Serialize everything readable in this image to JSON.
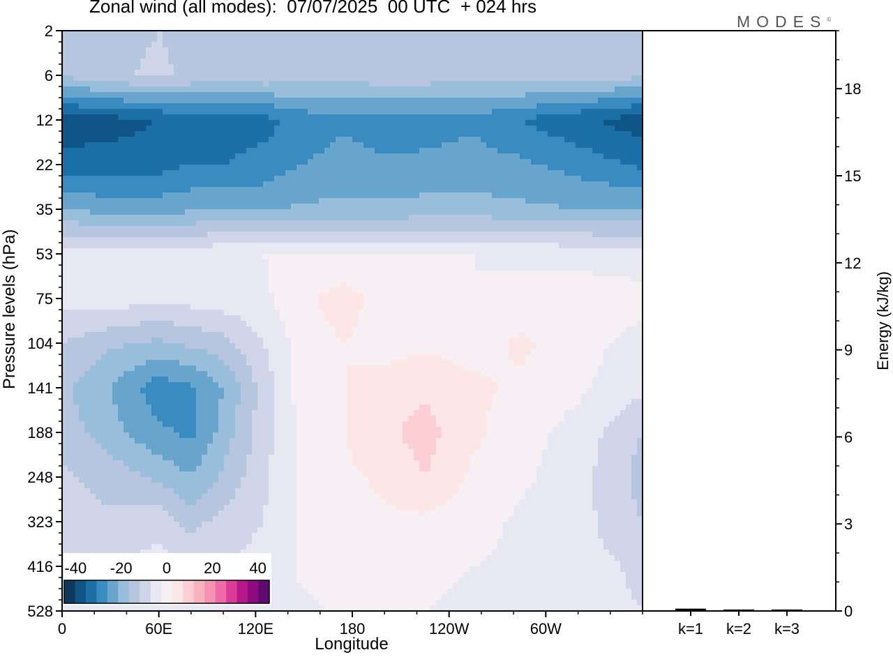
{
  "title": "Zonal wind (all modes):  07/07/2025  00 UTC  + 024 hrs",
  "logo": {
    "text": "MODES",
    "mark": "©"
  },
  "chart_data": [
    {
      "type": "heatmap",
      "title": "Zonal wind (all modes):  07/07/2025  00 UTC  + 024 hrs",
      "xlabel": "Longitude",
      "ylabel": "Pressure levels (hPa)",
      "x_ticks": [
        "0",
        "60E",
        "120E",
        "180",
        "120W",
        "60W"
      ],
      "x_tick_values": [
        0,
        60,
        120,
        180,
        240,
        300
      ],
      "xlim": [
        0,
        360
      ],
      "y_ticks": [
        "2",
        "6",
        "12",
        "22",
        "35",
        "53",
        "75",
        "104",
        "141",
        "188",
        "248",
        "323",
        "416",
        "528"
      ],
      "y_levels": [
        2,
        6,
        12,
        22,
        35,
        53,
        75,
        104,
        141,
        188,
        248,
        323,
        416,
        528
      ],
      "colorbar": {
        "labels": [
          "-40",
          "-20",
          "0",
          "20",
          "40"
        ],
        "label_values": [
          -40,
          -20,
          0,
          20,
          40
        ],
        "range": [
          -45,
          45
        ],
        "step": 5,
        "colors": [
          "#0d3a5c",
          "#0e5586",
          "#1a6fa6",
          "#3a8bbf",
          "#67a5cd",
          "#98bedb",
          "#b7c6df",
          "#d1d5e9",
          "#e8e8f2",
          "#f6f0f4",
          "#fde6e6",
          "#fbcfd3",
          "#f8b4be",
          "#f493b4",
          "#ee6aa8",
          "#dc3a98",
          "#b6178a",
          "#8c0b7e",
          "#5e0a72"
        ]
      },
      "values_ms": {
        "lon": [
          0,
          30,
          60,
          80,
          100,
          125,
          150,
          175,
          200,
          225,
          255,
          285,
          320,
          360
        ],
        "rows": [
          [
            -15,
            -12,
            -10,
            -12,
            -13,
            -12,
            -14,
            -15,
            -12,
            -13,
            -15,
            -13,
            -12,
            -15
          ],
          [
            -14,
            -11,
            -9,
            -11,
            -12,
            -11,
            -13,
            -14,
            -11,
            -12,
            -14,
            -12,
            -11,
            -14
          ],
          [
            -38,
            -37,
            -35,
            -33,
            -33,
            -32,
            -28,
            -26,
            -28,
            -27,
            -26,
            -30,
            -34,
            -38
          ],
          [
            -33,
            -33,
            -32,
            -30,
            -30,
            -28,
            -25,
            -23,
            -24,
            -24,
            -23,
            -24,
            -27,
            -31
          ],
          [
            -20,
            -22,
            -22,
            -21,
            -21,
            -21,
            -19,
            -19,
            -19,
            -18,
            -18,
            -19,
            -20,
            -20
          ],
          [
            -3,
            -2,
            -2,
            -2,
            -1,
            0,
            1,
            1,
            0,
            0,
            0,
            -1,
            -2,
            -3
          ],
          [
            -3,
            -2,
            -4,
            -3,
            -2,
            -1,
            4,
            7,
            3,
            1,
            0,
            2,
            3,
            2
          ],
          [
            -10,
            -14,
            -16,
            -14,
            -12,
            -5,
            3,
            5,
            3,
            4,
            3,
            6,
            2,
            -2
          ],
          [
            -14,
            -20,
            -28,
            -26,
            -20,
            -8,
            3,
            5,
            7,
            9,
            6,
            4,
            1,
            -4
          ],
          [
            -12,
            -18,
            -24,
            -26,
            -18,
            -7,
            2,
            5,
            9,
            12,
            6,
            2,
            -2,
            -10
          ],
          [
            -9,
            -12,
            -16,
            -20,
            -14,
            -6,
            1,
            4,
            6,
            10,
            4,
            1,
            -3,
            -12
          ],
          [
            -8,
            -9,
            -7,
            -12,
            -8,
            -5,
            1,
            3,
            4,
            4,
            2,
            -1,
            -3,
            -10
          ],
          [
            -6,
            -5,
            -3,
            -4,
            -5,
            -3,
            1,
            2,
            1,
            1,
            0,
            -1,
            -3,
            -6
          ],
          [
            -5,
            -3,
            -2,
            -2,
            -3,
            -2,
            -1,
            1,
            0,
            0,
            -1,
            -2,
            -3,
            -5
          ]
        ]
      }
    },
    {
      "type": "bar",
      "ylabel": "Energy (kJ/kg)",
      "categories": [
        "k=1",
        "k=2",
        "k=3"
      ],
      "values": [
        0.08,
        0.05,
        0.05
      ],
      "ylim": [
        0,
        20
      ],
      "y_ticks": [
        "0",
        "3",
        "6",
        "9",
        "12",
        "15",
        "18"
      ],
      "y_tick_values": [
        0,
        3,
        6,
        9,
        12,
        15,
        18
      ]
    }
  ]
}
